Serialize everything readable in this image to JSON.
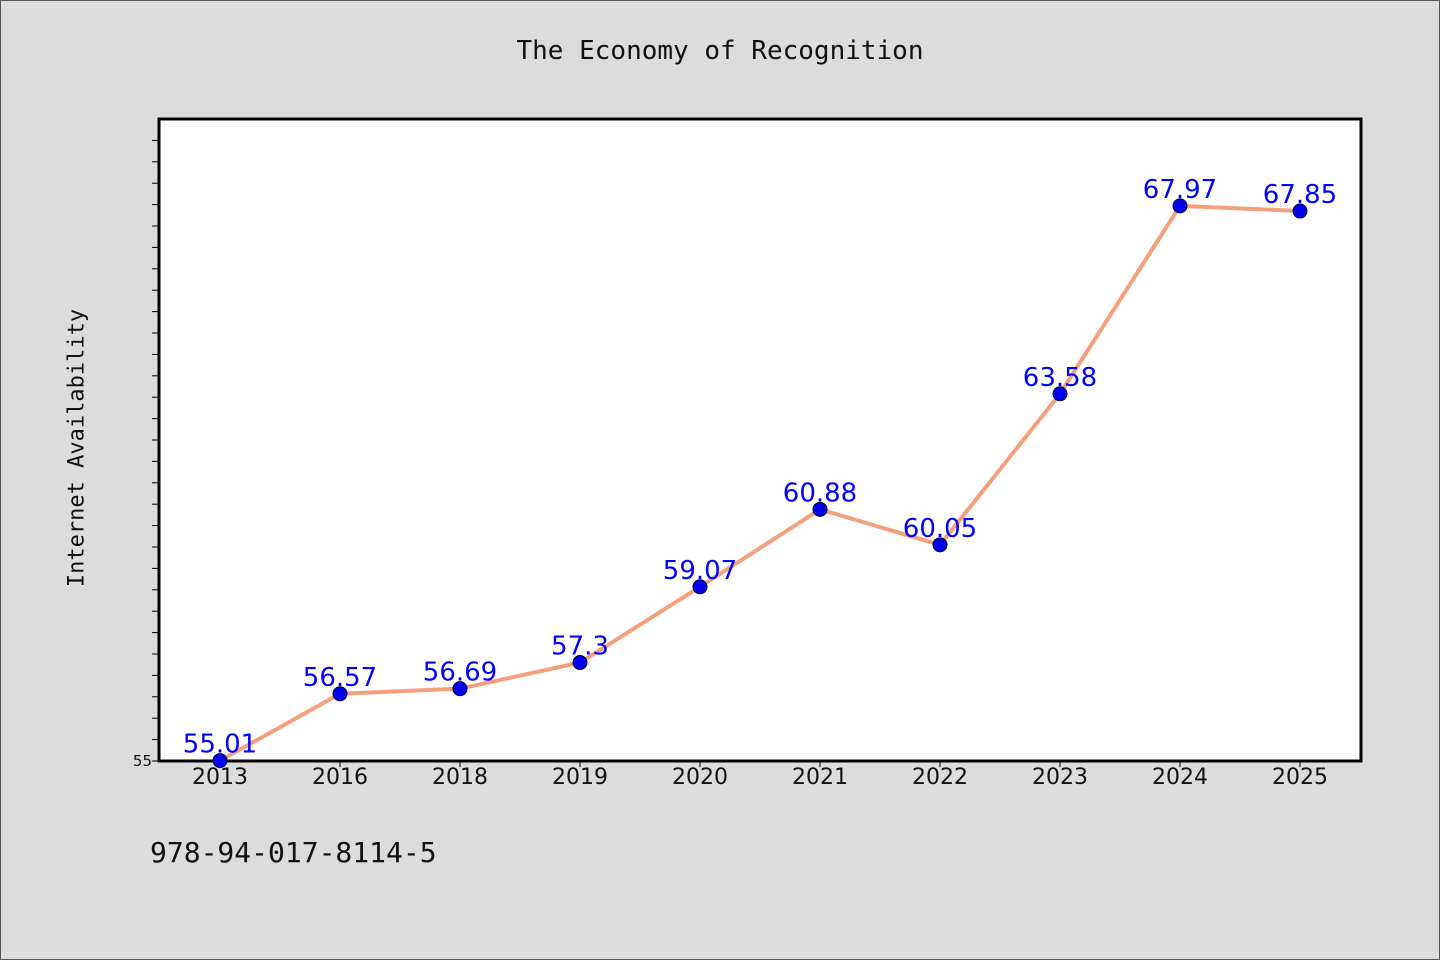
{
  "chart_data": {
    "type": "line",
    "title": "The Economy of Recognition",
    "xlabel": "",
    "ylabel": "Internet Availability",
    "categories": [
      "2013",
      "2016",
      "2018",
      "2019",
      "2020",
      "2021",
      "2022",
      "2023",
      "2024",
      "2025"
    ],
    "series": [
      {
        "values": [
          55.01,
          56.57,
          56.69,
          57.3,
          59.07,
          60.88,
          60.05,
          63.58,
          67.97,
          67.85
        ],
        "labels": [
          "55.01",
          "56.57",
          "56.69",
          "57.3",
          "59.07",
          "60.88",
          "60.05",
          "63.58",
          "67.97",
          "67.85"
        ]
      }
    ],
    "ylim": [
      55,
      70
    ],
    "y_tick_labels": [
      "55"
    ],
    "grid": false,
    "colors": {
      "line": "#f4a07c",
      "marker": "#0000ee",
      "data_label": "#0000ff",
      "background": "#dcdcdc",
      "plot_bg": "#ffffff"
    }
  },
  "footer_text": "978-94-017-8114-5"
}
